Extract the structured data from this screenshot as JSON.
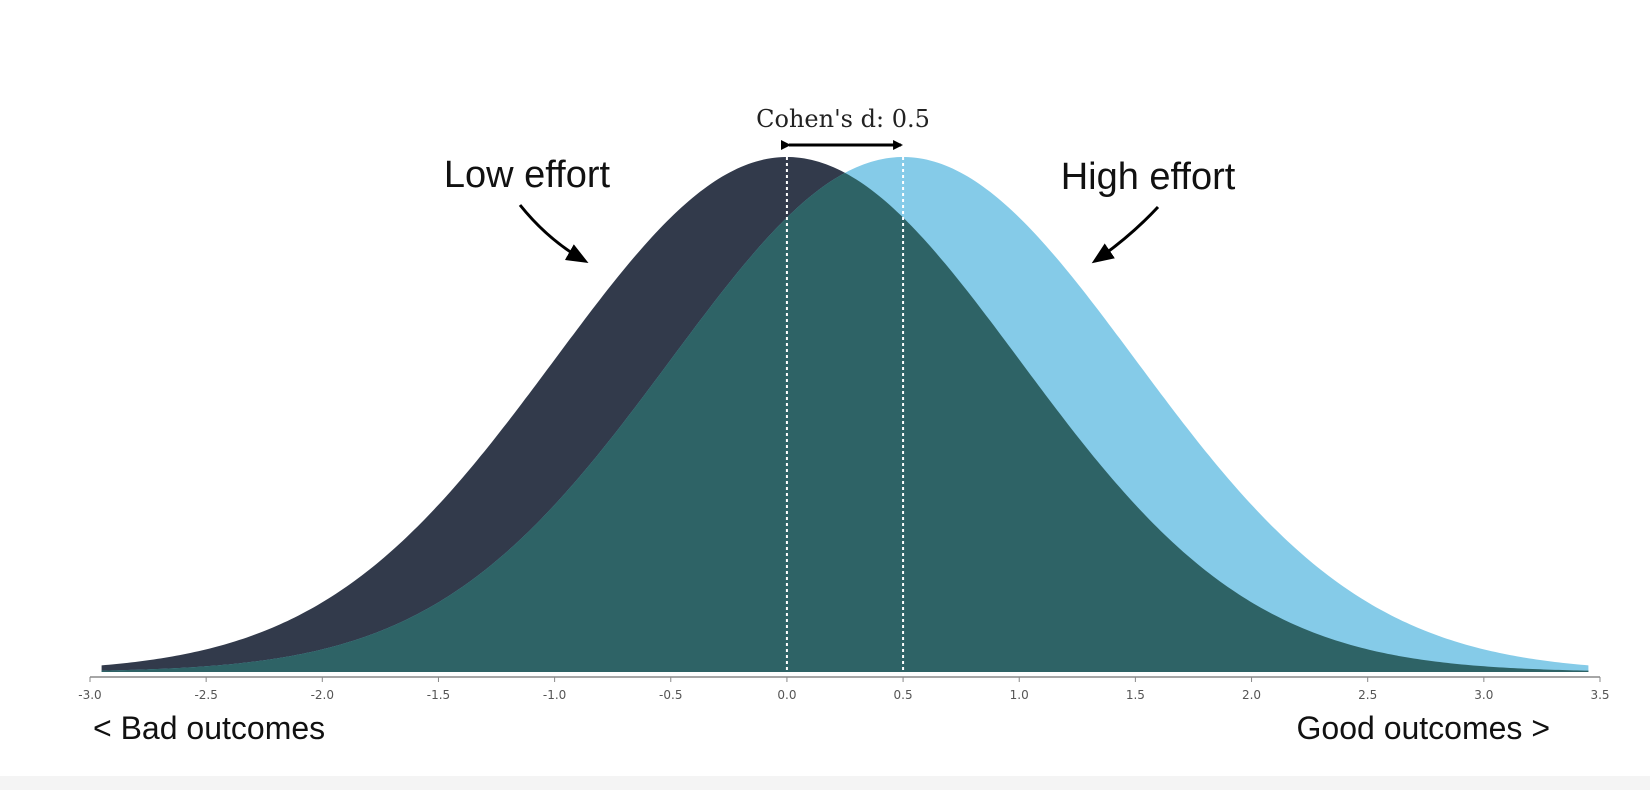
{
  "chart_data": {
    "type": "area",
    "title": "",
    "xlabel": "",
    "ylabel": "",
    "xlim": [
      -3.0,
      3.5
    ],
    "xticks": [
      "-3.0",
      "-2.5",
      "-2.0",
      "-1.5",
      "-1.0",
      "-0.5",
      "0.0",
      "0.5",
      "1.0",
      "1.5",
      "2.0",
      "2.5",
      "3.0",
      "3.5"
    ],
    "grid": false,
    "series": [
      {
        "name": "Low effort",
        "distribution": "normal",
        "mean": 0.0,
        "sd": 1.0,
        "color": "#323a4b"
      },
      {
        "name": "High effort",
        "distribution": "normal",
        "mean": 0.5,
        "sd": 1.0,
        "color": "#85cbe8"
      }
    ],
    "overlap_color": "#2e6366",
    "effect_size_label": "Cohen's d: 0.5",
    "cohens_d": 0.5,
    "mean_lines": [
      0.0,
      0.5
    ],
    "annotations": {
      "low_effort": "Low effort",
      "high_effort": "High effort",
      "bad_outcomes": "< Bad outcomes",
      "good_outcomes": "Good outcomes >"
    }
  }
}
